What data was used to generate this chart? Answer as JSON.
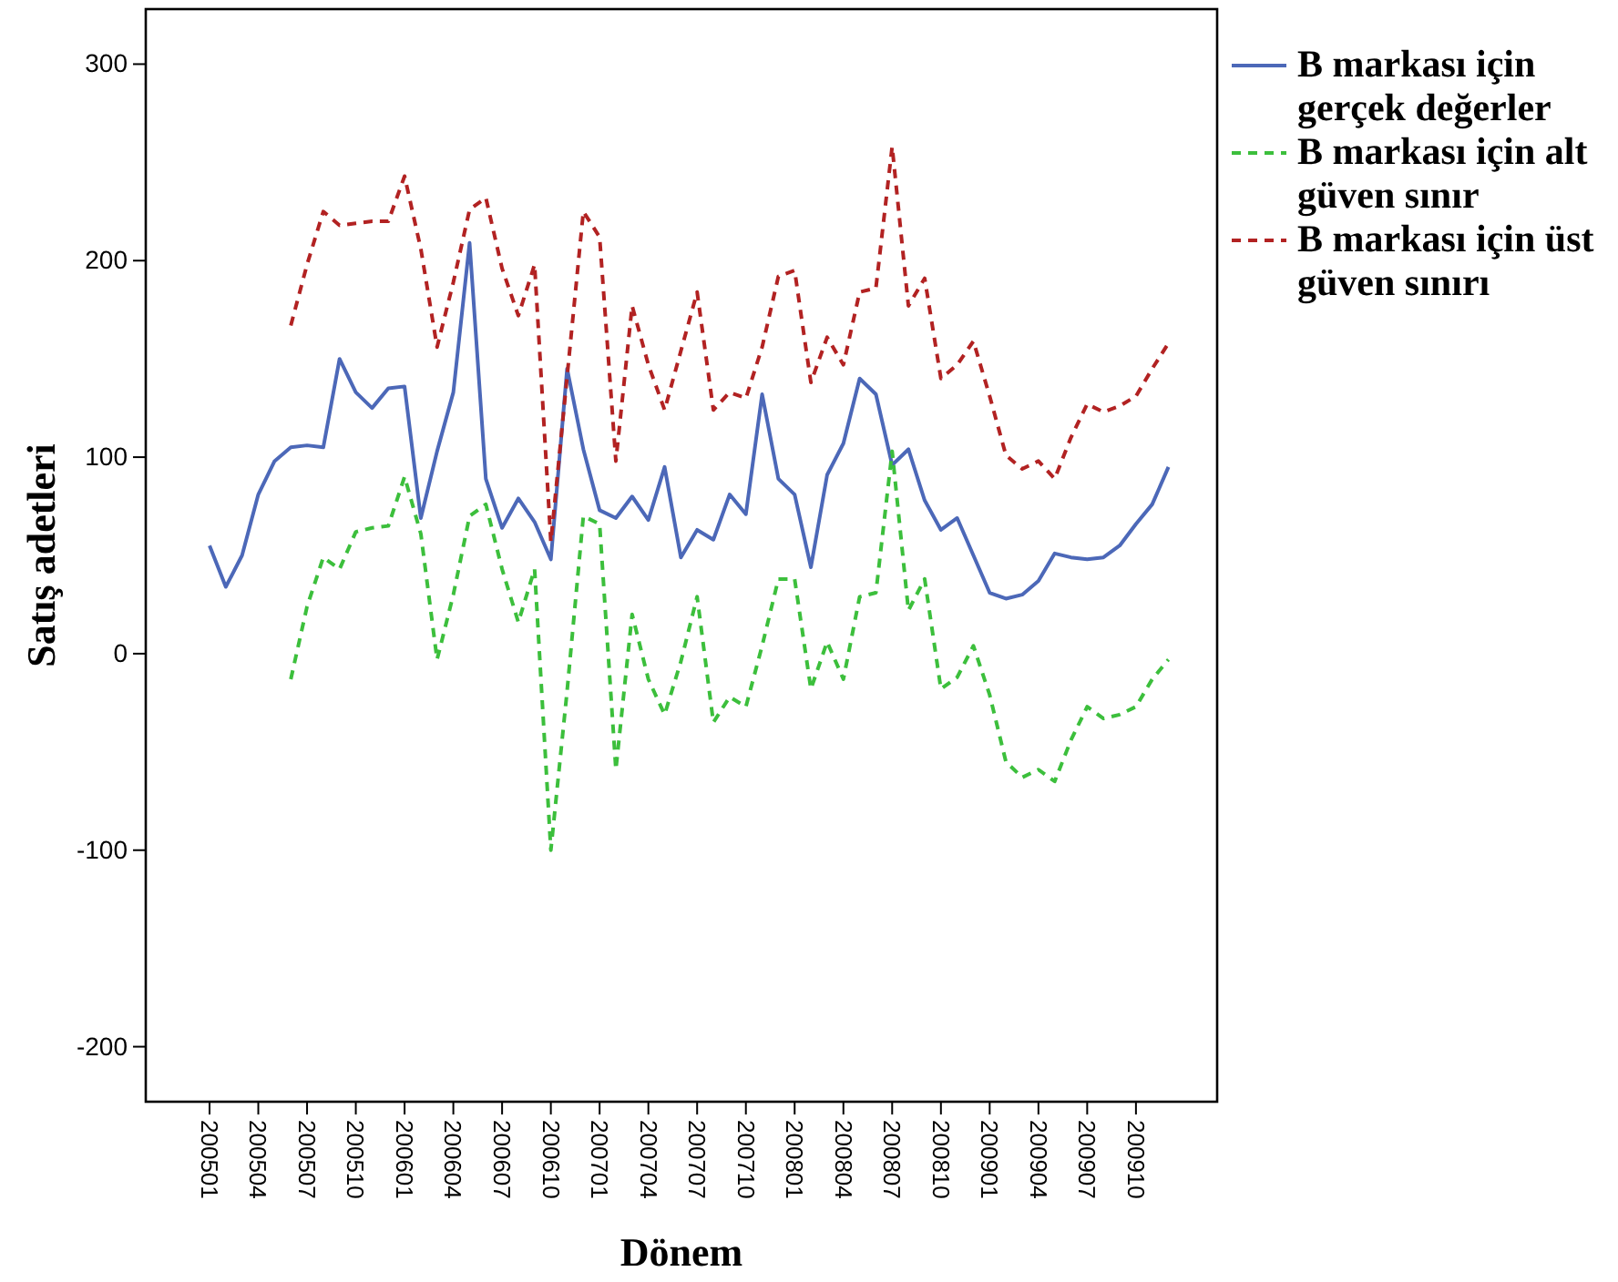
{
  "chart_data": {
    "type": "line",
    "xlabel": "Dönem",
    "ylabel": "Satış adetleri",
    "categories": [
      "200501",
      null,
      null,
      "200504",
      null,
      null,
      "200507",
      null,
      null,
      "200510",
      null,
      null,
      "200601",
      null,
      null,
      "200604",
      null,
      null,
      "200607",
      null,
      null,
      "200610",
      null,
      null,
      "200701",
      null,
      null,
      "200704",
      null,
      null,
      "200707",
      null,
      null,
      "200710",
      null,
      null,
      "200801",
      null,
      null,
      "200804",
      null,
      null,
      "200807",
      null,
      null,
      "200810",
      null,
      null,
      "200901",
      null,
      null,
      "200904",
      null,
      null,
      "200907",
      null,
      null,
      "200910",
      null,
      null
    ],
    "series": [
      {
        "name": "B markası için gerçek değerler",
        "color": "#4c68b8",
        "line_style": "solid",
        "values": [
          55,
          34,
          50,
          81,
          98,
          105,
          106,
          105,
          150,
          133,
          125,
          135,
          136,
          69,
          103,
          133,
          209,
          89,
          64,
          79,
          67,
          48,
          145,
          104,
          73,
          69,
          80,
          68,
          95,
          49,
          63,
          58,
          81,
          71,
          132,
          89,
          81,
          44,
          91,
          107,
          140,
          132,
          96,
          104,
          78,
          63,
          69,
          50,
          31,
          28,
          30,
          37,
          51,
          49,
          48,
          49,
          55,
          66,
          76,
          95
        ]
      },
      {
        "name": "B markası için alt güven sınır",
        "color": "#3cbf3c",
        "line_style": "dashed",
        "values": [
          null,
          null,
          null,
          null,
          null,
          -13,
          24,
          49,
          43,
          62,
          64,
          65,
          90,
          61,
          -3,
          30,
          70,
          76,
          43,
          16,
          43,
          -100,
          -19,
          70,
          66,
          -59,
          20,
          -13,
          -31,
          -4,
          29,
          -35,
          -22,
          -27,
          4,
          38,
          38,
          -18,
          6,
          -13,
          29,
          31,
          103,
          22,
          38,
          -18,
          -12,
          4,
          -21,
          -55,
          -63,
          -59,
          -65,
          -44,
          -27,
          -33,
          -31,
          -27,
          -13,
          -3
        ]
      },
      {
        "name": "B markası için üst güven sınırı",
        "color": "#b22222",
        "line_style": "dashed",
        "values": [
          null,
          null,
          null,
          null,
          null,
          167,
          198,
          225,
          218,
          219,
          220,
          220,
          243,
          206,
          156,
          189,
          226,
          232,
          196,
          172,
          198,
          57,
          141,
          225,
          212,
          98,
          177,
          147,
          124,
          154,
          184,
          124,
          133,
          130,
          156,
          192,
          195,
          138,
          161,
          147,
          184,
          186,
          258,
          177,
          191,
          140,
          147,
          159,
          131,
          101,
          94,
          98,
          89,
          110,
          127,
          123,
          126,
          131,
          145,
          158
        ]
      }
    ],
    "ylim": [
      -228,
      328
    ],
    "yticks": [
      -200,
      -100,
      0,
      100,
      200,
      300
    ],
    "grid": false,
    "legend": "top right"
  }
}
